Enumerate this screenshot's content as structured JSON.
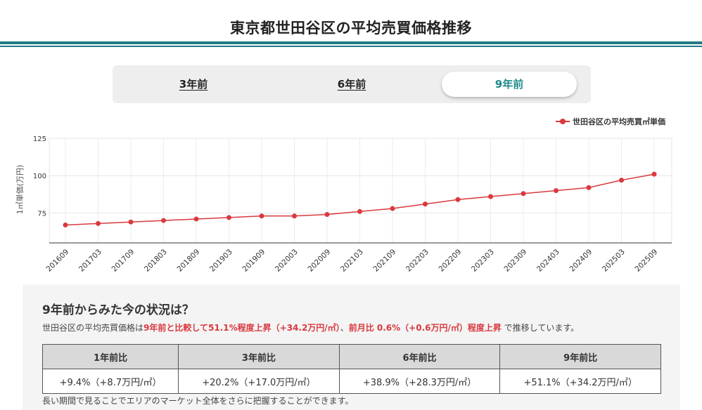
{
  "page": {
    "title": "東京都世田谷区の平均売買価格推移"
  },
  "tabs": [
    {
      "label": "3年前",
      "active": false
    },
    {
      "label": "6年前",
      "active": false
    },
    {
      "label": "9年前",
      "active": true
    }
  ],
  "chart_data": {
    "type": "line",
    "legend": "世田谷区の平均売買㎡単価",
    "ylabel": "1㎡単価(万円)",
    "ylim": [
      55,
      125
    ],
    "yticks": [
      75,
      100,
      125
    ],
    "color": "#d9393e",
    "categories": [
      "201609",
      "201703",
      "201709",
      "201803",
      "201809",
      "201903",
      "201909",
      "202003",
      "202009",
      "202103",
      "202109",
      "202203",
      "202209",
      "202303",
      "202309",
      "202403",
      "202409",
      "202503",
      "202509"
    ],
    "series": [
      {
        "name": "世田谷区の平均売買㎡単価",
        "values": [
          67,
          68,
          69,
          70,
          71,
          72,
          73,
          73,
          74,
          76,
          78,
          81,
          84,
          86,
          88,
          90,
          92,
          97,
          101
        ]
      }
    ]
  },
  "summary": {
    "heading": "9年前からみた今の状況は？",
    "prefix": "世田谷区の平均売買価格は",
    "highlight1": "9年前と比較して51.1%程度上昇（+34.2万円/㎡）",
    "middle": "、",
    "highlight2": "前月比 0.6%（+0.6万円/㎡）程度上昇",
    "suffix": " で推移しています。"
  },
  "comparison": {
    "headers": [
      "1年前比",
      "3年前比",
      "6年前比",
      "9年前比"
    ],
    "values": [
      "+9.4%（+8.7万円/㎡）",
      "+20.2%（+17.0万円/㎡）",
      "+38.9%（+28.3万円/㎡）",
      "+51.1%（+34.2万円/㎡）"
    ]
  },
  "footnote": "長い期間で見ることでエリアのマーケット全体をさらに把握することができます。"
}
